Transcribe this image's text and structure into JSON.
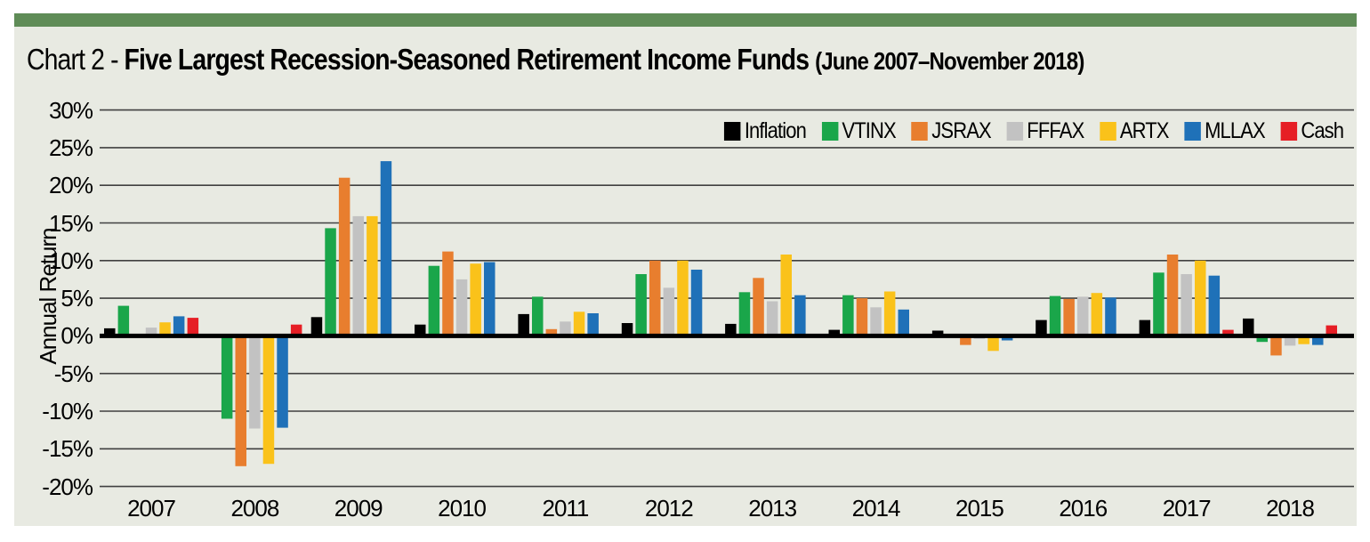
{
  "page": {
    "title_prefix": "Chart 2 -",
    "title_main": "Five Largest Recession-Seasoned Retirement Income Funds",
    "title_suffix": "(June 2007–November 2018)"
  },
  "colors": {
    "top_bar": "#5f8c57",
    "chart_background": "#e8eae2",
    "gridline": "#404040",
    "zero_axis": "#000000"
  },
  "chart_data": {
    "type": "bar",
    "title": "Chart 2 - Five Largest Recession-Seasoned Retirement Income Funds (June 2007–November 2018)",
    "xlabel": "",
    "ylabel": "Annual Return",
    "ylim": [
      -20,
      30
    ],
    "ytick_step": 5,
    "yticks": [
      "30%",
      "25%",
      "20%",
      "15%",
      "10%",
      "5%",
      "0%",
      "-5%",
      "-10%",
      "-15%",
      "-20%"
    ],
    "grid": true,
    "legend_position": "top-right-inside",
    "categories": [
      "2007",
      "2008",
      "2009",
      "2010",
      "2011",
      "2012",
      "2013",
      "2014",
      "2015",
      "2016",
      "2017",
      "2018"
    ],
    "series": [
      {
        "name": "Inflation",
        "color": "#000000",
        "values": [
          1.0,
          0.2,
          2.5,
          1.5,
          2.9,
          1.7,
          1.6,
          0.8,
          0.7,
          2.1,
          2.1,
          2.3
        ]
      },
      {
        "name": "VTINX",
        "color": "#1aa64a",
        "values": [
          4.0,
          -11.0,
          14.3,
          9.3,
          5.2,
          8.2,
          5.8,
          5.4,
          -0.2,
          5.3,
          8.4,
          -0.8
        ]
      },
      {
        "name": "JSRAX",
        "color": "#e87e2e",
        "values": [
          0.2,
          -17.3,
          21.0,
          11.2,
          0.9,
          10.0,
          7.7,
          5.0,
          -1.2,
          4.9,
          10.8,
          -2.6
        ]
      },
      {
        "name": "FFFAX",
        "color": "#c2c2c2",
        "values": [
          1.1,
          -12.3,
          15.9,
          7.5,
          1.9,
          6.4,
          4.6,
          3.8,
          -0.4,
          5.2,
          8.2,
          -1.3
        ]
      },
      {
        "name": "ARTX",
        "color": "#fac21a",
        "values": [
          1.8,
          -17.0,
          15.9,
          9.6,
          3.2,
          10.0,
          10.8,
          5.9,
          -2.0,
          5.7,
          10.0,
          -1.1
        ]
      },
      {
        "name": "MLLAX",
        "color": "#1f71b8",
        "values": [
          2.6,
          -12.2,
          23.2,
          9.8,
          3.0,
          8.8,
          5.4,
          3.5,
          -0.6,
          5.1,
          8.0,
          -1.2
        ]
      },
      {
        "name": "Cash",
        "color": "#e61e25",
        "values": [
          2.4,
          1.5,
          0.1,
          0.1,
          0.1,
          0.1,
          0.1,
          0.1,
          0.2,
          0.1,
          0.8,
          1.4
        ]
      }
    ]
  }
}
